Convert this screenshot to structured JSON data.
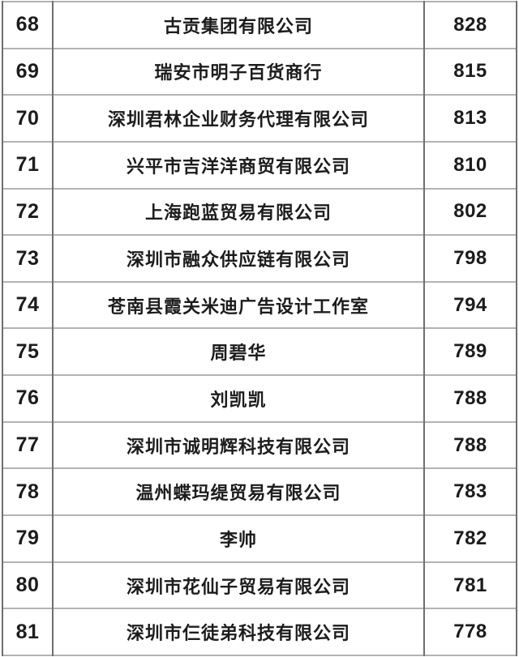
{
  "colors": {
    "background": "#ffffff",
    "text": "#1c1c1c",
    "border_horizontal": "#b3b3b3",
    "border_vertical": "#6f6f6f"
  },
  "table": {
    "columns": [
      "rank",
      "company_name",
      "score"
    ],
    "rows": [
      {
        "rank": "68",
        "name": "古贡集团有限公司",
        "score": "828"
      },
      {
        "rank": "69",
        "name": "瑞安市明子百货商行",
        "score": "815"
      },
      {
        "rank": "70",
        "name": "深圳君林企业财务代理有限公司",
        "score": "813"
      },
      {
        "rank": "71",
        "name": "兴平市吉洋洋商贸有限公司",
        "score": "810"
      },
      {
        "rank": "72",
        "name": "上海跑蓝贸易有限公司",
        "score": "802"
      },
      {
        "rank": "73",
        "name": "深圳市融众供应链有限公司",
        "score": "798"
      },
      {
        "rank": "74",
        "name": "苍南县霞关米迪广告设计工作室",
        "score": "794"
      },
      {
        "rank": "75",
        "name": "周碧华",
        "score": "789"
      },
      {
        "rank": "76",
        "name": "刘凯凯",
        "score": "788"
      },
      {
        "rank": "77",
        "name": "深圳市诚明辉科技有限公司",
        "score": "788"
      },
      {
        "rank": "78",
        "name": "温州蝶玛缇贸易有限公司",
        "score": "783"
      },
      {
        "rank": "79",
        "name": "李帅",
        "score": "782"
      },
      {
        "rank": "80",
        "name": "深圳市花仙子贸易有限公司",
        "score": "781"
      },
      {
        "rank": "81",
        "name": "深圳市仨徒弟科技有限公司",
        "score": "778"
      }
    ]
  }
}
